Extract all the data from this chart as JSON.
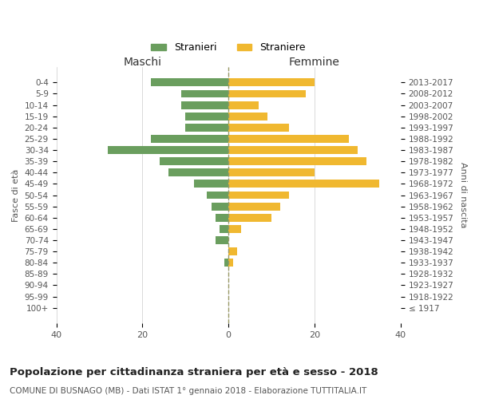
{
  "age_groups": [
    "100+",
    "95-99",
    "90-94",
    "85-89",
    "80-84",
    "75-79",
    "70-74",
    "65-69",
    "60-64",
    "55-59",
    "50-54",
    "45-49",
    "40-44",
    "35-39",
    "30-34",
    "25-29",
    "20-24",
    "15-19",
    "10-14",
    "5-9",
    "0-4"
  ],
  "birth_years": [
    "≤ 1917",
    "1918-1922",
    "1923-1927",
    "1928-1932",
    "1933-1937",
    "1938-1942",
    "1943-1947",
    "1948-1952",
    "1953-1957",
    "1958-1962",
    "1963-1967",
    "1968-1972",
    "1973-1977",
    "1978-1982",
    "1983-1987",
    "1988-1992",
    "1993-1997",
    "1998-2002",
    "2003-2007",
    "2008-2012",
    "2013-2017"
  ],
  "maschi": [
    0,
    0,
    0,
    0,
    1,
    0,
    3,
    2,
    3,
    4,
    5,
    8,
    14,
    16,
    28,
    18,
    10,
    10,
    11,
    11,
    18
  ],
  "femmine": [
    0,
    0,
    0,
    0,
    1,
    2,
    0,
    3,
    10,
    12,
    14,
    35,
    20,
    32,
    30,
    28,
    14,
    9,
    7,
    18,
    20
  ],
  "color_maschi": "#6a9e5e",
  "color_femmine": "#f0b830",
  "title": "Popolazione per cittadinanza straniera per età e sesso - 2018",
  "subtitle": "COMUNE DI BUSNAGO (MB) - Dati ISTAT 1° gennaio 2018 - Elaborazione TUTTITALIA.IT",
  "xlabel_left": "Maschi",
  "xlabel_right": "Femmine",
  "ylabel_left": "Fasce di età",
  "ylabel_right": "Anni di nascita",
  "legend_maschi": "Stranieri",
  "legend_femmine": "Straniere",
  "xlim": 40,
  "background_color": "#ffffff",
  "grid_color": "#cccccc",
  "dashed_line_color": "#999966"
}
